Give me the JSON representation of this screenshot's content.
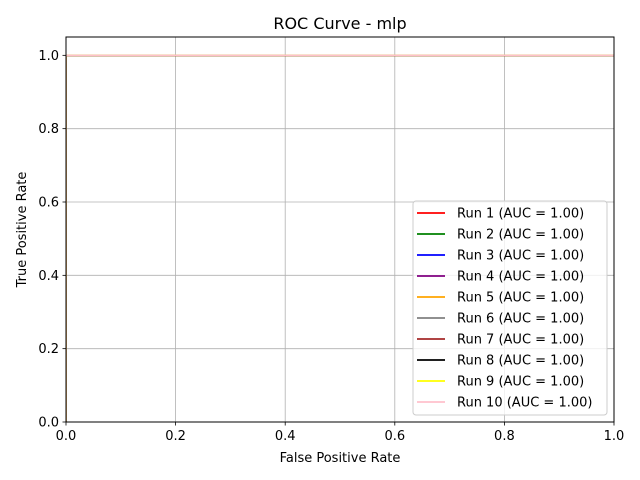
{
  "chart_data": {
    "type": "line",
    "title": "ROC Curve - mlp",
    "xlabel": "False Positive Rate",
    "ylabel": "True Positive Rate",
    "xlim": [
      0.0,
      1.0
    ],
    "ylim": [
      0.0,
      1.05
    ],
    "grid": true,
    "legend_position": "lower-right",
    "x_ticks": [
      0.0,
      0.2,
      0.4,
      0.6,
      0.8,
      1.0
    ],
    "y_ticks": [
      0.0,
      0.2,
      0.4,
      0.6,
      0.8,
      1.0
    ],
    "x_tick_labels": [
      "0.0",
      "0.2",
      "0.4",
      "0.6",
      "0.8",
      "1.0"
    ],
    "y_tick_labels": [
      "0.0",
      "0.2",
      "0.4",
      "0.6",
      "0.8",
      "1.0"
    ],
    "series": [
      {
        "name": "Run 1 (AUC = 1.00)",
        "color": "#ff0000",
        "x": [
          0.0,
          0.0,
          1.0
        ],
        "y": [
          0.0,
          1.0,
          1.0
        ]
      },
      {
        "name": "Run 2 (AUC = 1.00)",
        "color": "#008000",
        "x": [
          0.0,
          0.0,
          1.0
        ],
        "y": [
          0.0,
          1.0,
          1.0
        ]
      },
      {
        "name": "Run 3 (AUC = 1.00)",
        "color": "#0000ff",
        "x": [
          0.0,
          0.0,
          1.0
        ],
        "y": [
          0.0,
          1.0,
          1.0
        ]
      },
      {
        "name": "Run 4 (AUC = 1.00)",
        "color": "#800080",
        "x": [
          0.0,
          0.0,
          1.0
        ],
        "y": [
          0.0,
          1.0,
          1.0
        ]
      },
      {
        "name": "Run 5 (AUC = 1.00)",
        "color": "#ffa500",
        "x": [
          0.0,
          0.0,
          1.0
        ],
        "y": [
          0.0,
          1.0,
          1.0
        ]
      },
      {
        "name": "Run 6 (AUC = 1.00)",
        "color": "#808080",
        "x": [
          0.0,
          0.0,
          1.0
        ],
        "y": [
          0.0,
          1.0,
          1.0
        ]
      },
      {
        "name": "Run 7 (AUC = 1.00)",
        "color": "#a52a2a",
        "x": [
          0.0,
          0.0,
          1.0
        ],
        "y": [
          0.0,
          1.0,
          1.0
        ]
      },
      {
        "name": "Run 8 (AUC = 1.00)",
        "color": "#000000",
        "x": [
          0.0,
          0.0,
          1.0
        ],
        "y": [
          0.0,
          1.0,
          1.0
        ]
      },
      {
        "name": "Run 9 (AUC = 1.00)",
        "color": "#ffff00",
        "x": [
          0.0,
          0.0,
          1.0
        ],
        "y": [
          0.0,
          1.0,
          1.0
        ]
      },
      {
        "name": "Run 10 (AUC = 1.00)",
        "color": "#ffc0cb",
        "x": [
          0.0,
          0.0,
          1.0
        ],
        "y": [
          0.0,
          1.0,
          1.0
        ]
      }
    ]
  }
}
